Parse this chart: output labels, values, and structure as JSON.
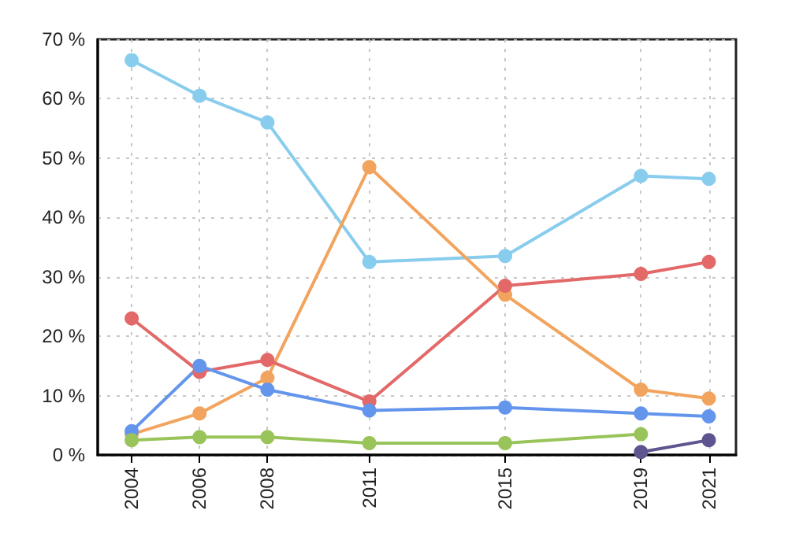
{
  "chart_data": {
    "type": "line",
    "x": [
      2004,
      2006,
      2008,
      2011,
      2015,
      2019,
      2021
    ],
    "series": [
      {
        "color": "#88ccee",
        "values": [
          66.5,
          60.5,
          56,
          32.5,
          33.5,
          47,
          46.5
        ]
      },
      {
        "color": "#f2a45e",
        "values": [
          3.5,
          7,
          13,
          48.5,
          27,
          11,
          9.5
        ]
      },
      {
        "color": "#e36868",
        "values": [
          23,
          14,
          16,
          9,
          28.5,
          30.5,
          32.5
        ]
      },
      {
        "color": "#6495ed",
        "values": [
          4,
          15,
          11,
          7.5,
          8,
          7,
          6.5
        ]
      },
      {
        "color": "#99c45a",
        "values": [
          2.5,
          3,
          3,
          2,
          2,
          3.5,
          null
        ]
      },
      {
        "color": "#5e5490",
        "values": [
          null,
          null,
          null,
          null,
          null,
          0.5,
          2.5
        ]
      }
    ],
    "xlim": [
      2003,
      2021.8
    ],
    "xticks": [
      2004,
      2006,
      2008,
      2011,
      2015,
      2019,
      2021
    ],
    "ylim": [
      0,
      70
    ],
    "yticks": [
      {
        "value": 0,
        "label": "0 %"
      },
      {
        "value": 10,
        "label": "10 %"
      },
      {
        "value": 20,
        "label": "20 %"
      },
      {
        "value": 30,
        "label": "30 %"
      },
      {
        "value": 40,
        "label": "40 %"
      },
      {
        "value": 50,
        "label": "50 %"
      },
      {
        "value": 60,
        "label": "60 %"
      },
      {
        "value": 70,
        "label": "70 %"
      }
    ],
    "grid": true,
    "marker": "circle"
  }
}
